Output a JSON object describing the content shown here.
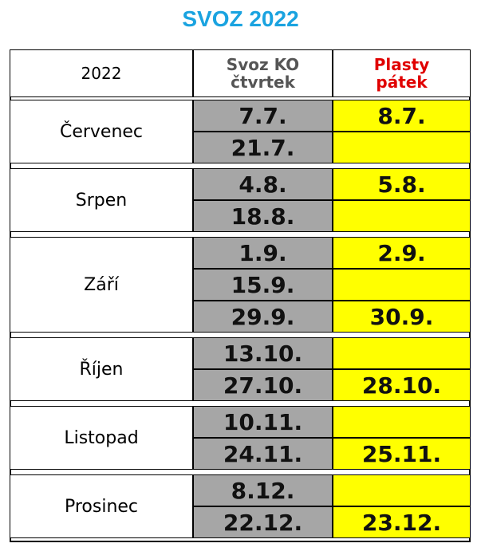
{
  "title": "SVOZ 2022",
  "table": {
    "header": [
      [
        "2022"
      ],
      [
        "Svoz KO",
        "čtvrtek"
      ],
      [
        "Plasty",
        "pátek"
      ]
    ],
    "groups": [
      {
        "month": "Červenec",
        "rows": [
          [
            "7.7.",
            "8.7."
          ],
          [
            "21.7.",
            null
          ]
        ]
      },
      {
        "month": "Srpen",
        "rows": [
          [
            "4.8.",
            "5.8."
          ],
          [
            "18.8.",
            null
          ]
        ]
      },
      {
        "month": "Září",
        "rows": [
          [
            "1.9.",
            "2.9."
          ],
          [
            "15.9.",
            null
          ],
          [
            "29.9.",
            "30.9."
          ]
        ]
      },
      {
        "month": "Říjen",
        "rows": [
          [
            "13.10.",
            null
          ],
          [
            "27.10.",
            "28.10."
          ]
        ]
      },
      {
        "month": "Listopad",
        "rows": [
          [
            "10.11.",
            null
          ],
          [
            "24.11.",
            "25.11."
          ]
        ]
      },
      {
        "month": "Prosinec",
        "rows": [
          [
            "8.12.",
            null
          ],
          [
            "22.12.",
            "23.12."
          ]
        ]
      }
    ]
  }
}
